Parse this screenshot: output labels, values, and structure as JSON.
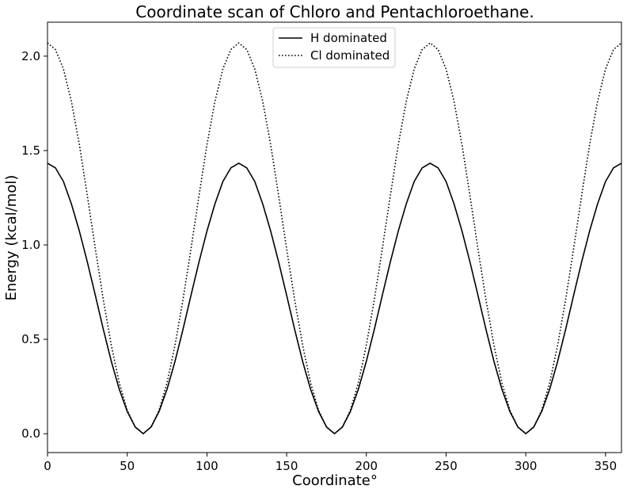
{
  "chart_data": {
    "type": "line",
    "title": "Coordinate scan of Chloro and Pentachloroethane.",
    "xlabel": "Coordinate°",
    "ylabel": "Energy (kcal/mol)",
    "xlim": [
      0,
      360
    ],
    "ylim": [
      -0.1,
      2.18
    ],
    "xticks": [
      0,
      50,
      100,
      150,
      200,
      250,
      300,
      350
    ],
    "yticks": [
      0.0,
      0.5,
      1.0,
      1.5,
      2.0
    ],
    "ytick_labels": [
      "0.0",
      "0.5",
      "1.0",
      "1.5",
      "2.0"
    ],
    "grid": false,
    "legend": "top-center",
    "series": [
      {
        "name": "H dominated",
        "style": "solid",
        "color": "#000000",
        "x": [
          0,
          5,
          10,
          15,
          20,
          25,
          30,
          35,
          40,
          45,
          50,
          55,
          60,
          65,
          70,
          75,
          80,
          85,
          90,
          95,
          100,
          105,
          110,
          115,
          120,
          125,
          130,
          135,
          140,
          145,
          150,
          155,
          160,
          165,
          170,
          175,
          180,
          185,
          190,
          195,
          200,
          205,
          210,
          215,
          220,
          225,
          230,
          235,
          240,
          245,
          250,
          255,
          260,
          265,
          270,
          275,
          280,
          285,
          290,
          295,
          300,
          305,
          310,
          315,
          320,
          325,
          330,
          335,
          340,
          345,
          350,
          355,
          360
        ],
        "y": [
          1.433,
          1.408,
          1.336,
          1.217,
          1.073,
          0.909,
          0.733,
          0.553,
          0.384,
          0.236,
          0.118,
          0.036,
          0.0,
          0.036,
          0.118,
          0.236,
          0.384,
          0.553,
          0.733,
          0.909,
          1.073,
          1.217,
          1.336,
          1.408,
          1.433,
          1.408,
          1.336,
          1.217,
          1.073,
          0.909,
          0.733,
          0.553,
          0.384,
          0.236,
          0.118,
          0.036,
          0.0,
          0.036,
          0.118,
          0.236,
          0.384,
          0.553,
          0.733,
          0.909,
          1.073,
          1.217,
          1.336,
          1.408,
          1.433,
          1.408,
          1.336,
          1.217,
          1.073,
          0.909,
          0.733,
          0.553,
          0.384,
          0.236,
          0.118,
          0.036,
          0.0,
          0.036,
          0.118,
          0.236,
          0.384,
          0.553,
          0.733,
          0.909,
          1.073,
          1.217,
          1.336,
          1.408,
          1.433
        ]
      },
      {
        "name": "Cl dominated",
        "style": "dotted",
        "color": "#000000",
        "x": [
          0,
          5,
          10,
          15,
          20,
          25,
          30,
          35,
          40,
          45,
          50,
          55,
          60,
          65,
          70,
          75,
          80,
          85,
          90,
          95,
          100,
          105,
          110,
          115,
          120,
          125,
          130,
          135,
          140,
          145,
          150,
          155,
          160,
          165,
          170,
          175,
          180,
          185,
          190,
          195,
          200,
          205,
          210,
          215,
          220,
          225,
          230,
          235,
          240,
          245,
          250,
          255,
          260,
          265,
          270,
          275,
          280,
          285,
          290,
          295,
          300,
          305,
          310,
          315,
          320,
          325,
          330,
          335,
          340,
          345,
          350,
          355,
          360
        ],
        "y": [
          2.07,
          2.035,
          1.932,
          1.76,
          1.53,
          1.26,
          0.98,
          0.71,
          0.47,
          0.27,
          0.125,
          0.035,
          0.0,
          0.035,
          0.125,
          0.27,
          0.47,
          0.71,
          0.98,
          1.26,
          1.53,
          1.76,
          1.932,
          2.035,
          2.07,
          2.035,
          1.932,
          1.76,
          1.53,
          1.26,
          0.98,
          0.71,
          0.47,
          0.27,
          0.125,
          0.035,
          0.0,
          0.035,
          0.125,
          0.27,
          0.47,
          0.71,
          0.98,
          1.26,
          1.53,
          1.76,
          1.932,
          2.035,
          2.07,
          2.035,
          1.932,
          1.76,
          1.53,
          1.26,
          0.98,
          0.71,
          0.47,
          0.27,
          0.125,
          0.035,
          0.0,
          0.035,
          0.125,
          0.27,
          0.47,
          0.71,
          0.98,
          1.26,
          1.53,
          1.76,
          1.932,
          2.035,
          2.07
        ]
      }
    ]
  }
}
